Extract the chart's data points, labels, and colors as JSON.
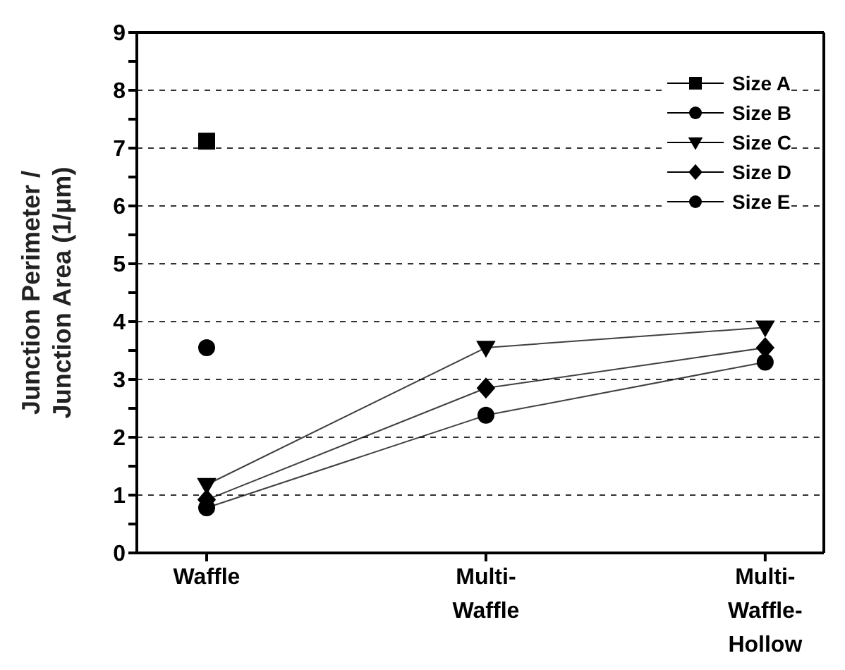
{
  "chart_data": {
    "type": "line",
    "ylabel": "Junction Perimeter / Junction Area (1/μm)",
    "categories": [
      "Waffle",
      "Multi-Waffle",
      "Multi-Waffle-Hollow"
    ],
    "series": [
      {
        "name": "Size A",
        "color": "#000000",
        "marker": "square",
        "values": [
          7.12,
          null,
          null
        ]
      },
      {
        "name": "Size B",
        "color": "#000000",
        "marker": "circle",
        "values": [
          3.55,
          null,
          null
        ]
      },
      {
        "name": "Size C",
        "color": "#000000",
        "marker": "triangle",
        "values": [
          1.18,
          3.55,
          3.9
        ]
      },
      {
        "name": "Size D",
        "color": "#000000",
        "marker": "diamond",
        "values": [
          0.92,
          2.85,
          3.55
        ]
      },
      {
        "name": "Size E",
        "color": "#000000",
        "marker": "circle",
        "values": [
          0.78,
          2.38,
          3.3
        ]
      }
    ],
    "ylim": [
      0,
      9
    ],
    "yticks": [
      0,
      {
        "value": 0.5,
        "label": null
      },
      1,
      {
        "value": 1.5,
        "label": null
      },
      2,
      {
        "value": 2.5,
        "label": null
      },
      3,
      {
        "value": 3.5,
        "label": null
      },
      4,
      {
        "value": 4.5,
        "label": null
      },
      5,
      {
        "value": 5.5,
        "label": null
      },
      6,
      {
        "value": 6.5,
        "label": null
      },
      7,
      {
        "value": 7.5,
        "label": null
      },
      8,
      {
        "value": 8.5,
        "label": null
      },
      9
    ],
    "grid": "y",
    "legend": "top right",
    "line_style": "solid"
  }
}
